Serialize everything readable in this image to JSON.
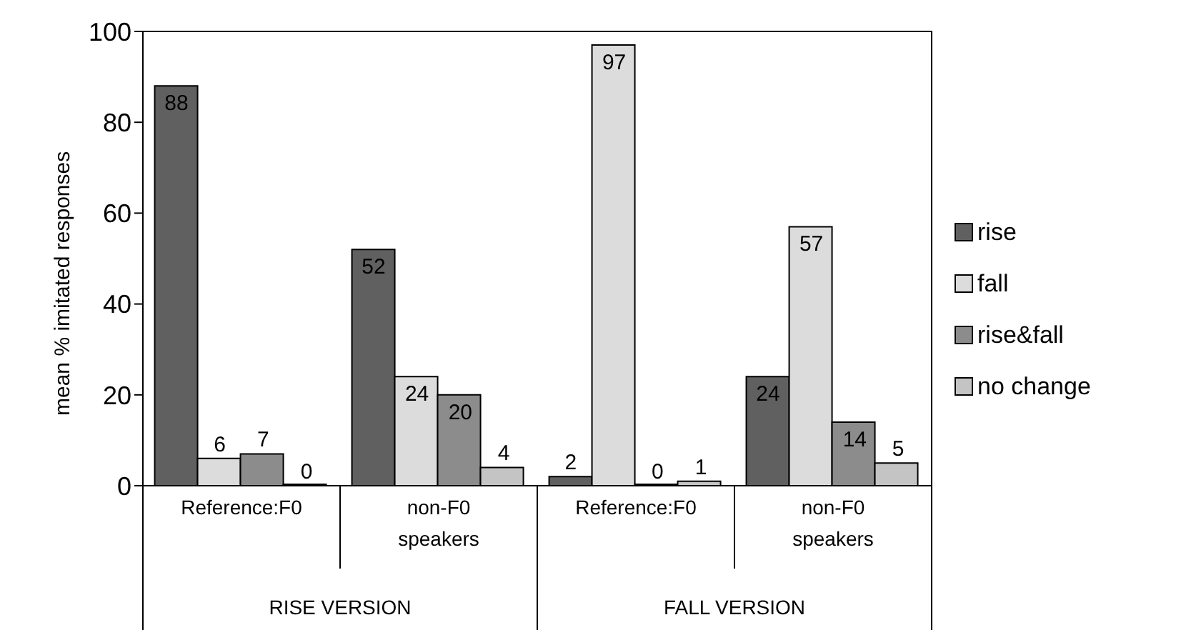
{
  "chart_data": {
    "type": "bar",
    "ylabel": "mean % imitated responses",
    "categories": [
      "Reference:F0",
      "non-F0 speakers",
      "Reference:F0",
      "non-F0 speakers"
    ],
    "annotations": [
      "RISE VERSION",
      "FALL VERSION"
    ],
    "series": [
      {
        "name": "rise",
        "color": "#606060",
        "values": [
          88,
          52,
          2,
          24
        ]
      },
      {
        "name": "fall",
        "color": "#dcdcdc",
        "values": [
          6,
          24,
          97,
          57
        ]
      },
      {
        "name": "rise&fall",
        "color": "#8c8c8c",
        "values": [
          7,
          20,
          0,
          14
        ]
      },
      {
        "name": "no change",
        "color": "#c4c4c4",
        "values": [
          0,
          4,
          1,
          5
        ]
      }
    ],
    "ylim": [
      0,
      100
    ],
    "yticks": [
      0,
      20,
      40,
      60,
      80,
      100
    ],
    "grid": false,
    "legend": "right",
    "data_labels": true
  }
}
